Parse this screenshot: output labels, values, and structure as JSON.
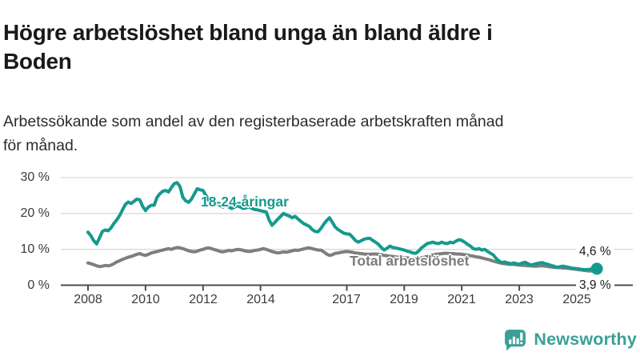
{
  "header": {
    "title": "Högre arbetslöshet bland unga än bland äldre i\nBoden",
    "subtitle": "Arbetssökande som andel av den registerbaserade arbetskraften månad\nför månad."
  },
  "chart_data": {
    "type": "line",
    "title": "Högre arbetslöshet bland unga än bland äldre i Boden",
    "subtitle": "Arbetssökande som andel av den registerbaserade arbetskraften månad för månad.",
    "unit": "%",
    "grid": "horizontal",
    "legend_position": "inline-labels",
    "x_start": 2008.0,
    "x_step": 0.1,
    "x_end": 2025.7,
    "x_ticks": [
      2008,
      2010,
      2012,
      2014,
      2017,
      2019,
      2021,
      2023,
      2025
    ],
    "y_ticks": [
      {
        "value": 0,
        "label": "0 %"
      },
      {
        "value": 10,
        "label": "10 %"
      },
      {
        "value": 20,
        "label": "20 %"
      },
      {
        "value": 30,
        "label": "30 %"
      }
    ],
    "ylim": [
      0,
      32
    ],
    "axis_color": "#4d4d4d",
    "grid_color": "#d9d9d9",
    "series": [
      {
        "name": "Total arbetslöshet",
        "color": "#7e7e7e",
        "end_label": "3,9 %",
        "end_value": 3.9,
        "marker_end": false,
        "values": [
          6.2,
          6.0,
          5.7,
          5.4,
          5.2,
          5.3,
          5.5,
          5.4,
          5.6,
          6.0,
          6.5,
          6.8,
          7.2,
          7.5,
          7.8,
          8.0,
          8.3,
          8.6,
          8.8,
          8.5,
          8.3,
          8.6,
          9.0,
          9.2,
          9.4,
          9.6,
          9.8,
          10.0,
          10.2,
          10.0,
          10.3,
          10.5,
          10.4,
          10.2,
          9.9,
          9.6,
          9.4,
          9.3,
          9.5,
          9.8,
          10.0,
          10.3,
          10.4,
          10.2,
          9.9,
          9.7,
          9.4,
          9.3,
          9.5,
          9.7,
          9.6,
          9.8,
          10.0,
          9.9,
          9.7,
          9.5,
          9.4,
          9.5,
          9.7,
          9.8,
          10.0,
          10.2,
          10.0,
          9.7,
          9.4,
          9.2,
          9.0,
          9.1,
          9.3,
          9.2,
          9.4,
          9.6,
          9.8,
          9.7,
          9.9,
          10.1,
          10.3,
          10.4,
          10.2,
          10.0,
          9.8,
          9.8,
          9.3,
          8.7,
          8.3,
          8.5,
          8.9,
          9.0,
          9.2,
          9.3,
          9.4,
          9.3,
          9.2,
          9.0,
          8.9,
          8.8,
          8.7,
          8.6,
          8.6,
          8.7,
          8.7,
          8.6,
          8.5,
          8.3,
          8.2,
          8.1,
          8.0,
          7.9,
          7.8,
          7.7,
          7.7,
          7.6,
          7.5,
          7.4,
          7.4,
          7.5,
          7.6,
          7.8,
          8.0,
          8.2,
          8.4,
          8.6,
          8.7,
          8.8,
          8.9,
          8.9,
          8.8,
          8.8,
          8.7,
          8.7,
          8.6,
          8.5,
          8.4,
          8.2,
          8.1,
          7.9,
          7.8,
          7.6,
          7.4,
          7.2,
          7.0,
          6.7,
          6.5,
          6.3,
          6.1,
          6.0,
          5.9,
          5.8,
          5.8,
          5.7,
          5.6,
          5.5,
          5.5,
          5.4,
          5.4,
          5.3,
          5.3,
          5.4,
          5.4,
          5.3,
          5.2,
          5.1,
          5.0,
          4.9,
          4.9,
          4.8,
          4.8,
          4.7,
          4.6,
          4.5,
          4.4,
          4.3,
          4.2,
          4.1,
          4.0,
          4.0,
          3.9,
          3.9
        ]
      },
      {
        "name": "18-24-åringar",
        "color": "#149a8d",
        "end_label": "4,6 %",
        "end_value": 4.6,
        "marker_end": true,
        "values": [
          14.8,
          13.8,
          12.4,
          11.5,
          13.2,
          15.0,
          15.4,
          15.2,
          16.0,
          17.2,
          18.2,
          19.4,
          21.0,
          22.5,
          23.2,
          22.8,
          23.4,
          24.0,
          23.8,
          22.0,
          20.8,
          21.8,
          22.3,
          22.3,
          24.5,
          25.5,
          26.2,
          26.4,
          26.0,
          27.2,
          28.3,
          28.6,
          27.5,
          24.5,
          23.5,
          23.1,
          24.0,
          25.5,
          26.9,
          26.6,
          26.4,
          25.0,
          23.7,
          23.0,
          22.4,
          22.8,
          22.2,
          21.8,
          22.3,
          21.8,
          21.4,
          21.8,
          22.2,
          21.8,
          21.4,
          21.6,
          21.9,
          21.4,
          21.1,
          21.0,
          20.8,
          20.6,
          20.4,
          18.2,
          16.7,
          17.5,
          18.4,
          19.2,
          20.0,
          19.6,
          19.3,
          18.8,
          19.2,
          18.5,
          17.8,
          17.2,
          16.8,
          16.4,
          15.5,
          15.0,
          14.9,
          15.8,
          17.0,
          18.0,
          18.8,
          17.5,
          16.2,
          15.5,
          15.0,
          14.5,
          14.3,
          14.2,
          13.4,
          12.5,
          12.0,
          12.4,
          12.8,
          13.0,
          13.1,
          12.5,
          12.0,
          11.4,
          10.5,
          9.8,
          10.3,
          10.9,
          10.5,
          10.4,
          10.2,
          10.0,
          9.8,
          9.5,
          9.3,
          9.0,
          8.9,
          9.5,
          10.4,
          11.0,
          11.6,
          11.8,
          12.0,
          11.7,
          11.6,
          12.0,
          11.7,
          11.6,
          12.0,
          11.8,
          12.3,
          12.7,
          12.5,
          12.0,
          11.4,
          10.9,
          10.2,
          10.0,
          10.2,
          9.8,
          10.0,
          9.4,
          8.9,
          8.4,
          7.4,
          6.7,
          6.3,
          6.5,
          6.2,
          6.0,
          6.2,
          6.0,
          5.8,
          6.2,
          6.4,
          6.0,
          5.6,
          5.8,
          6.0,
          6.2,
          6.3,
          6.0,
          5.8,
          5.5,
          5.3,
          5.0,
          5.1,
          5.3,
          5.2,
          5.0,
          4.8,
          4.7,
          4.6,
          4.5,
          4.4,
          4.3,
          4.4,
          4.5,
          4.6,
          4.6
        ]
      }
    ]
  },
  "footer": {
    "brand": "Newsworthy",
    "brand_color": "#3aa096",
    "logo_icon": "bar-chart-speech-bubble"
  }
}
